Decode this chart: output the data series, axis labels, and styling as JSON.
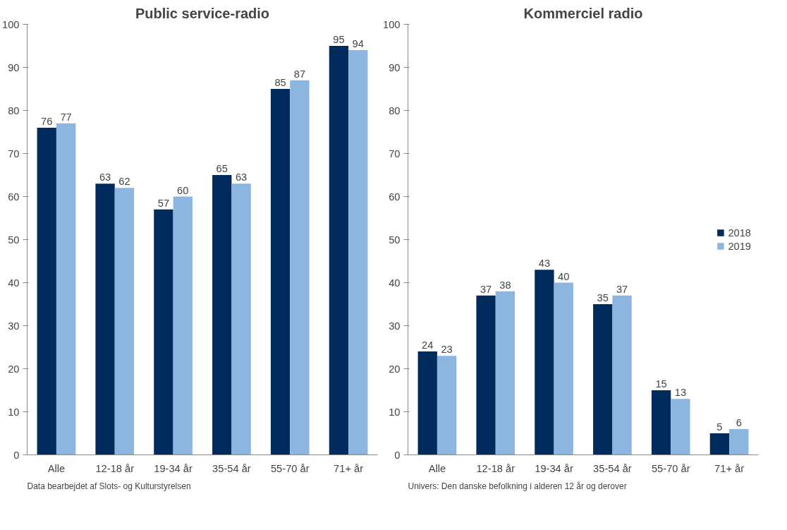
{
  "chart_data": [
    {
      "type": "bar",
      "title": "Public service-radio",
      "categories": [
        "Alle",
        "12-18 år",
        "19-34 år",
        "35-54 år",
        "55-70 år",
        "71+ år"
      ],
      "series": [
        {
          "color": "#002b5c",
          "values": [
            76,
            63,
            57,
            65,
            85,
            95
          ]
        },
        {
          "color": "#8cb6df",
          "values": [
            77,
            62,
            60,
            63,
            87,
            94
          ]
        }
      ],
      "ylim": [
        0,
        100
      ],
      "yticks": [
        0,
        10,
        20,
        30,
        40,
        50,
        60,
        70,
        80,
        90,
        100
      ],
      "grid": false,
      "legend": false,
      "data_labels": true,
      "annotations": [
        "Data bearbejdet af Slots- og Kulturstyrelsen"
      ]
    },
    {
      "type": "bar",
      "title": "Kommerciel radio",
      "categories": [
        "Alle",
        "12-18 år",
        "19-34 år",
        "35-54 år",
        "55-70 år",
        "71+ år"
      ],
      "series": [
        {
          "name": "2018",
          "color": "#002b5c",
          "values": [
            24,
            37,
            43,
            35,
            15,
            5
          ]
        },
        {
          "name": "2019",
          "color": "#8cb6df",
          "values": [
            23,
            38,
            40,
            37,
            13,
            6
          ]
        }
      ],
      "ylim": [
        0,
        100
      ],
      "yticks": [
        0,
        10,
        20,
        30,
        40,
        50,
        60,
        70,
        80,
        90,
        100
      ],
      "grid": false,
      "legend": "right",
      "data_labels": true,
      "annotations": [
        "Univers: Den danske befolkning i alderen 12 år og derover"
      ]
    }
  ]
}
